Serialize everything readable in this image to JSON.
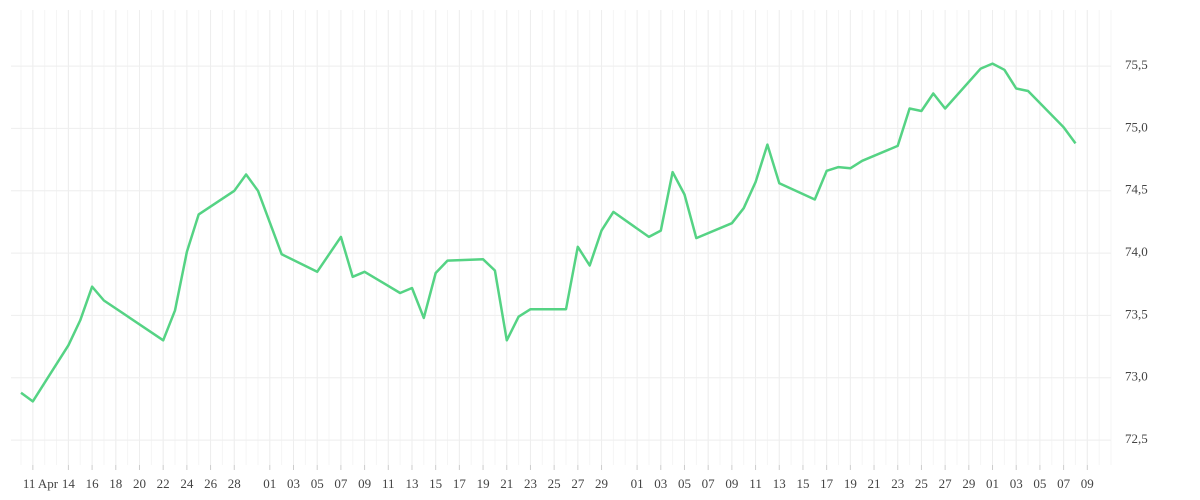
{
  "chart_data": {
    "type": "line",
    "x": [
      "Apr 10",
      "Apr 11",
      "Apr 14",
      "Apr 15",
      "Apr 16",
      "Apr 17",
      "Apr 22",
      "Apr 23",
      "Apr 24",
      "Apr 25",
      "Apr 28",
      "Apr 29",
      "Apr 30",
      "May 2",
      "May 5",
      "May 7",
      "May 8",
      "May 9",
      "May 12",
      "May 13",
      "May 14",
      "May 15",
      "May 16",
      "May 19",
      "May 20",
      "May 21",
      "May 22",
      "May 23",
      "May 26",
      "May 27",
      "May 28",
      "May 29",
      "May 30",
      "Jun 2",
      "Jun 3",
      "Jun 4",
      "Jun 5",
      "Jun 6",
      "Jun 9",
      "Jun 10",
      "Jun 11",
      "Jun 12",
      "Jun 13",
      "Jun 16",
      "Jun 17",
      "Jun 18",
      "Jun 19",
      "Jun 20",
      "Jun 23",
      "Jun 24",
      "Jun 25",
      "Jun 26",
      "Jun 27",
      "Jun 30",
      "Jul 1",
      "Jul 2",
      "Jul 3",
      "Jul 4",
      "Jul 7",
      "Jul 8"
    ],
    "values": [
      72.88,
      72.81,
      73.26,
      73.46,
      73.73,
      73.62,
      73.3,
      73.54,
      74.01,
      74.31,
      74.5,
      74.63,
      74.5,
      73.99,
      73.85,
      74.13,
      73.81,
      73.85,
      73.68,
      73.72,
      73.48,
      73.84,
      73.94,
      73.95,
      73.86,
      73.3,
      73.49,
      73.55,
      73.55,
      74.05,
      73.9,
      74.18,
      74.33,
      74.13,
      74.18,
      74.65,
      74.47,
      74.12,
      74.24,
      74.36,
      74.57,
      74.87,
      74.56,
      74.43,
      74.66,
      74.69,
      74.68,
      74.74,
      74.86,
      75.16,
      75.14,
      75.28,
      75.16,
      75.48,
      75.52,
      75.47,
      75.32,
      75.3,
      75.01,
      74.88
    ],
    "color": "#55d384",
    "xlim": [
      "Apr 10",
      "Jul 11"
    ],
    "xticks": [
      {
        "value": "Apr 11",
        "label": "11 Apr"
      },
      {
        "value": "Apr 14",
        "label": "14"
      },
      {
        "value": "Apr 16",
        "label": "16"
      },
      {
        "value": "Apr 18",
        "label": "18"
      },
      {
        "value": "Apr 20",
        "label": "20"
      },
      {
        "value": "Apr 22",
        "label": "22"
      },
      {
        "value": "Apr 24",
        "label": "24"
      },
      {
        "value": "Apr 26",
        "label": "26"
      },
      {
        "value": "Apr 28",
        "label": "28"
      },
      {
        "value": "May 1",
        "label": "01"
      },
      {
        "value": "May 3",
        "label": "03"
      },
      {
        "value": "May 5",
        "label": "05"
      },
      {
        "value": "May 7",
        "label": "07"
      },
      {
        "value": "May 9",
        "label": "09"
      },
      {
        "value": "May 11",
        "label": "11"
      },
      {
        "value": "May 13",
        "label": "13"
      },
      {
        "value": "May 15",
        "label": "15"
      },
      {
        "value": "May 17",
        "label": "17"
      },
      {
        "value": "May 19",
        "label": "19"
      },
      {
        "value": "May 21",
        "label": "21"
      },
      {
        "value": "May 23",
        "label": "23"
      },
      {
        "value": "May 25",
        "label": "25"
      },
      {
        "value": "May 27",
        "label": "27"
      },
      {
        "value": "May 29",
        "label": "29"
      },
      {
        "value": "Jun 1",
        "label": "01"
      },
      {
        "value": "Jun 3",
        "label": "03"
      },
      {
        "value": "Jun 5",
        "label": "05"
      },
      {
        "value": "Jun 7",
        "label": "07"
      },
      {
        "value": "Jun 9",
        "label": "09"
      },
      {
        "value": "Jun 11",
        "label": "11"
      },
      {
        "value": "Jun 13",
        "label": "13"
      },
      {
        "value": "Jun 15",
        "label": "15"
      },
      {
        "value": "Jun 17",
        "label": "17"
      },
      {
        "value": "Jun 19",
        "label": "19"
      },
      {
        "value": "Jun 21",
        "label": "21"
      },
      {
        "value": "Jun 23",
        "label": "23"
      },
      {
        "value": "Jun 25",
        "label": "25"
      },
      {
        "value": "Jun 27",
        "label": "27"
      },
      {
        "value": "Jun 29",
        "label": "29"
      },
      {
        "value": "Jul 1",
        "label": "01"
      },
      {
        "value": "Jul 3",
        "label": "03"
      },
      {
        "value": "Jul 5",
        "label": "05"
      },
      {
        "value": "Jul 7",
        "label": "07"
      },
      {
        "value": "Jul 9",
        "label": "09"
      }
    ],
    "ylim": [
      72.3,
      75.95
    ],
    "yticks": [
      {
        "value": 72.5,
        "label": "72,5"
      },
      {
        "value": 73.0,
        "label": "73,0"
      },
      {
        "value": 73.5,
        "label": "73,5"
      },
      {
        "value": 74.0,
        "label": "74,0"
      },
      {
        "value": 74.5,
        "label": "74,5"
      },
      {
        "value": 75.0,
        "label": "75,0"
      },
      {
        "value": 75.5,
        "label": "75,5"
      }
    ],
    "grid": true
  }
}
